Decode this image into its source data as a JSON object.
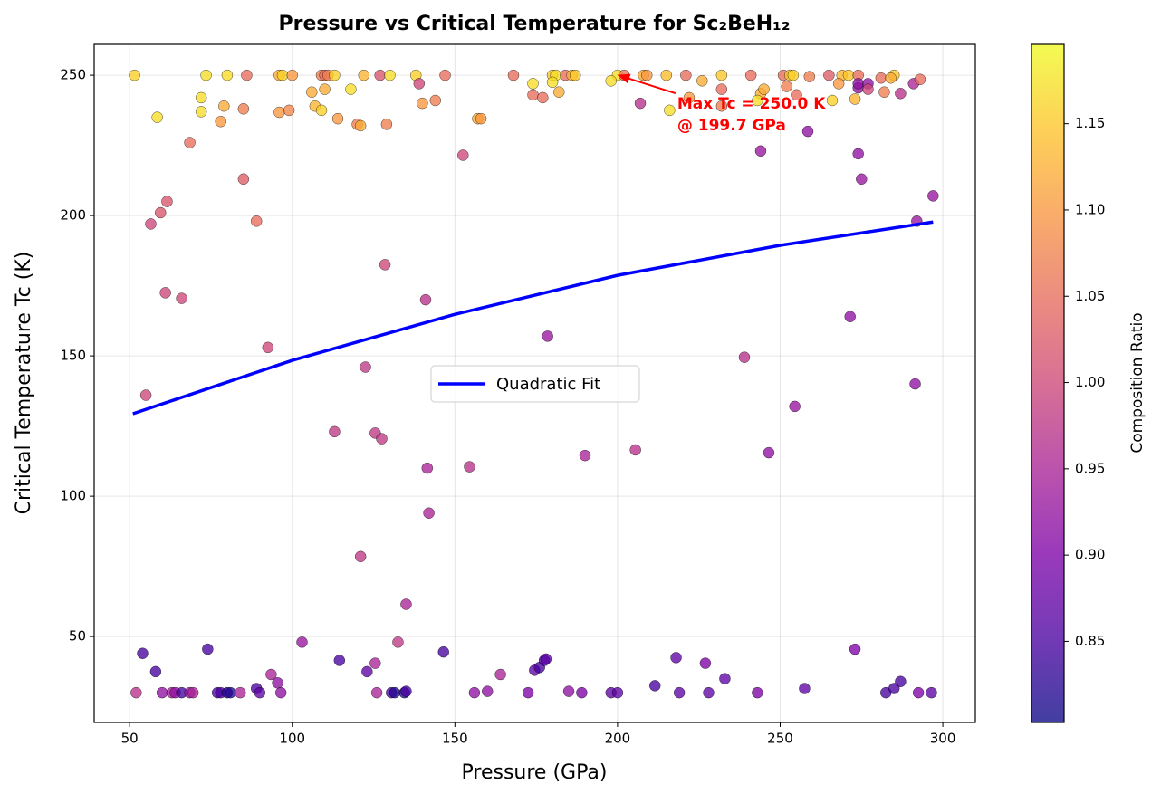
{
  "chart_data": {
    "type": "scatter",
    "title": "Pressure vs Critical Temperature for Sc₂BeH₁₂",
    "x_label": "Pressure (GPa)",
    "y_label": "Critical Temperature Tc (K)",
    "xlim": [
      39.1,
      310
    ],
    "ylim": [
      19.4,
      261
    ],
    "xticks": [
      50,
      100,
      150,
      200,
      250,
      300
    ],
    "yticks": [
      50,
      100,
      150,
      200,
      250
    ],
    "grid": true,
    "colorbar": {
      "label": "Composition Ratio",
      "lim": [
        0.803,
        1.196
      ],
      "colormap": "plasma",
      "ticks": [
        {
          "value": 0.85,
          "label": "0.85"
        },
        {
          "value": 0.9,
          "label": "0.90"
        },
        {
          "value": 0.95,
          "label": "0.95"
        },
        {
          "value": 1.0,
          "label": "1.00"
        },
        {
          "value": 1.05,
          "label": "1.05"
        },
        {
          "value": 1.1,
          "label": "1.10"
        },
        {
          "value": 1.15,
          "label": "1.15"
        }
      ]
    },
    "points": {
      "x": [
        51.5,
        73.5,
        80,
        86,
        96,
        97,
        100,
        109,
        110,
        111,
        113,
        122,
        127,
        130,
        138,
        147,
        168,
        180,
        181,
        184,
        186,
        187,
        200,
        202,
        208,
        209,
        215,
        221,
        232,
        241,
        251,
        253,
        254,
        265,
        269,
        271,
        274,
        285,
        58.5,
        72,
        72,
        79,
        78,
        85,
        96,
        99,
        106,
        107,
        109,
        110,
        114,
        118,
        120,
        121,
        129,
        139,
        140,
        144,
        157,
        158,
        174,
        174,
        177,
        180,
        182,
        198,
        207,
        216,
        222,
        226,
        232,
        232,
        244,
        243,
        245,
        252,
        255,
        259,
        266,
        268,
        273,
        274,
        274,
        277,
        277,
        281,
        282,
        284,
        287,
        291,
        293,
        258.5,
        244,
        274,
        275,
        297,
        292,
        68.5,
        85,
        61.5,
        59.5,
        56.5,
        89,
        61,
        66,
        92.5,
        55,
        152.5,
        128.5,
        141,
        178.5,
        122.5,
        113,
        125.5,
        127.5,
        141.5,
        154.5,
        190,
        205.5,
        142,
        121,
        135,
        132.5,
        103,
        271.5,
        239,
        254.5,
        291.5,
        246.5,
        273,
        52,
        54,
        58,
        60,
        63,
        64,
        66,
        68.5,
        69.5,
        74,
        77,
        78,
        80,
        81,
        84,
        89,
        90,
        93.5,
        95.5,
        96.5,
        114.5,
        123,
        125.5,
        126,
        130.5,
        131.5,
        134.5,
        135,
        146.5,
        156,
        160,
        164,
        172.5,
        174.5,
        176,
        177.5,
        178,
        185,
        189,
        198,
        200,
        211.5,
        218,
        219,
        227,
        228,
        233,
        243,
        257.5,
        282.5,
        285,
        287,
        292.5,
        296.5
      ],
      "values": [
        250,
        250,
        250,
        250,
        250,
        250,
        250,
        250,
        250,
        250,
        250,
        250,
        250,
        250,
        250,
        250,
        250,
        250,
        250,
        250,
        250,
        250,
        250,
        250,
        250,
        250,
        250,
        250,
        250,
        250,
        250,
        250,
        250,
        250,
        250,
        250,
        250,
        250,
        235,
        242,
        237,
        239,
        233.5,
        238,
        236.8,
        237.5,
        244,
        239,
        237.5,
        245,
        234.5,
        245,
        232.5,
        232,
        232.5,
        247,
        240,
        241,
        234.5,
        234.5,
        247,
        243,
        242,
        247.5,
        244,
        248,
        240,
        237.5,
        242,
        248,
        245,
        239,
        243.5,
        241,
        245,
        246,
        243,
        249.5,
        241,
        247,
        241.5,
        245.5,
        247,
        247,
        245,
        249,
        244,
        249,
        243.5,
        247,
        248.5,
        230,
        223,
        222,
        213,
        207,
        198,
        226,
        213,
        205,
        201,
        197,
        198,
        172.5,
        170.5,
        153,
        136,
        221.5,
        182.5,
        170,
        157,
        146,
        123,
        122.5,
        120.5,
        110,
        110.5,
        114.5,
        116.5,
        94,
        78.5,
        61.5,
        48,
        48,
        164,
        149.5,
        132,
        140,
        115.5,
        45.5,
        30,
        44,
        37.5,
        30,
        30,
        30,
        30,
        30,
        30,
        45.5,
        30,
        30,
        30,
        30,
        30,
        31.5,
        30,
        36.5,
        33.5,
        30,
        41.5,
        37.5,
        40.5,
        30,
        30,
        30,
        30,
        30.5,
        44.5,
        30,
        30.5,
        36.5,
        30,
        38,
        39,
        41.5,
        42,
        30.5,
        30,
        30,
        30,
        32.5,
        42.5,
        30,
        40.5,
        30,
        35,
        30,
        31.5,
        30,
        31.5,
        34,
        30,
        30
      ],
      "colors": [
        1.16,
        1.17,
        1.17,
        1.05,
        1.12,
        1.16,
        1.1,
        1.07,
        1.05,
        1.07,
        1.16,
        1.13,
        1.02,
        1.17,
        1.16,
        1.05,
        1.05,
        1.15,
        1.17,
        1.05,
        1.13,
        1.15,
        1.17,
        1.06,
        1.12,
        1.1,
        1.14,
        1.05,
        1.15,
        1.05,
        1.05,
        1.15,
        1.16,
        1.03,
        1.13,
        1.15,
        1.05,
        1.15,
        1.17,
        1.17,
        1.17,
        1.12,
        1.1,
        1.07,
        1.1,
        1.08,
        1.12,
        1.13,
        1.16,
        1.12,
        1.1,
        1.17,
        1.07,
        1.12,
        1.07,
        1.0,
        1.1,
        1.07,
        1.12,
        1.1,
        1.17,
        1.05,
        1.05,
        1.17,
        1.12,
        1.17,
        0.97,
        1.17,
        1.1,
        1.12,
        1.05,
        1.07,
        1.12,
        1.17,
        1.12,
        1.07,
        1.05,
        1.07,
        1.16,
        1.1,
        1.13,
        0.92,
        0.92,
        0.92,
        1.0,
        1.05,
        1.07,
        1.12,
        0.97,
        0.95,
        1.05,
        0.92,
        0.93,
        0.92,
        0.93,
        0.93,
        0.93,
        1.05,
        1.03,
        1.02,
        1.02,
        1.0,
        1.05,
        1.0,
        1.0,
        1.0,
        1.0,
        1.0,
        1.0,
        0.97,
        0.93,
        0.98,
        0.98,
        0.98,
        0.98,
        0.95,
        0.97,
        0.95,
        0.97,
        0.95,
        0.98,
        0.95,
        0.98,
        0.93,
        0.92,
        0.97,
        0.93,
        0.92,
        0.92,
        0.9,
        0.97,
        0.85,
        0.85,
        0.92,
        0.95,
        0.92,
        0.85,
        0.93,
        0.95,
        0.85,
        0.85,
        0.85,
        0.82,
        0.82,
        0.95,
        0.85,
        0.87,
        0.95,
        0.92,
        0.92,
        0.85,
        0.87,
        0.95,
        0.95,
        0.85,
        0.82,
        0.82,
        0.85,
        0.85,
        0.92,
        0.92,
        0.95,
        0.9,
        0.87,
        0.85,
        0.85,
        0.87,
        0.92,
        0.9,
        0.87,
        0.87,
        0.85,
        0.87,
        0.87,
        0.9,
        0.87,
        0.87,
        0.9,
        0.87,
        0.85,
        0.85,
        0.85,
        0.9,
        0.87
      ]
    },
    "series": [
      {
        "name": "Quadratic Fit",
        "color": "#0000ff",
        "x": [
          51,
          100,
          150,
          200,
          250,
          297
        ],
        "values": [
          129.4,
          148.4,
          164.8,
          178.7,
          189.4,
          197.7
        ]
      }
    ],
    "annotation": {
      "text": [
        "Max Tc = 250.0 K",
        "@ 199.7 GPa"
      ],
      "xy": [
        199.7,
        250
      ],
      "color": "#ff0000"
    }
  }
}
